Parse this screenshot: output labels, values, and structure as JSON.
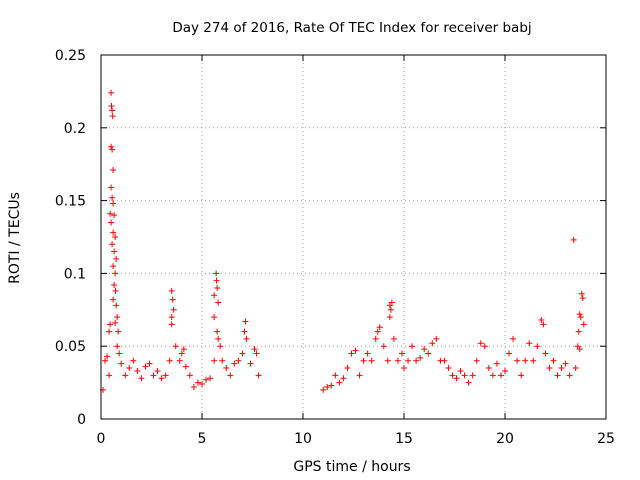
{
  "chart_data": {
    "type": "scatter",
    "title": "Day 274 of 2016, Rate Of TEC Index for receiver babj",
    "xlabel": "GPS time / hours",
    "ylabel": "ROTI / TECUs",
    "xlim": [
      0,
      25
    ],
    "ylim": [
      0,
      0.25
    ],
    "x_ticks": [
      "0",
      "5",
      "10",
      "15",
      "20",
      "25"
    ],
    "y_ticks": [
      "0",
      "0.05",
      "0.1",
      "0.15",
      "0.2",
      "0.25"
    ],
    "x_tick_values": [
      0,
      5,
      10,
      15,
      20,
      25
    ],
    "y_tick_values": [
      0,
      0.05,
      0.1,
      0.15,
      0.2,
      0.25
    ],
    "grid": true,
    "marker": "+",
    "series": [
      {
        "name": "ROTI",
        "color": "#ff0000",
        "points": [
          [
            0.1,
            0.02
          ],
          [
            0.2,
            0.04
          ],
          [
            0.3,
            0.043
          ],
          [
            0.4,
            0.03
          ],
          [
            0.4,
            0.06
          ],
          [
            0.45,
            0.065
          ],
          [
            0.5,
            0.224
          ],
          [
            0.52,
            0.215
          ],
          [
            0.55,
            0.212
          ],
          [
            0.58,
            0.208
          ],
          [
            0.5,
            0.187
          ],
          [
            0.55,
            0.185
          ],
          [
            0.6,
            0.171
          ],
          [
            0.5,
            0.159
          ],
          [
            0.55,
            0.152
          ],
          [
            0.6,
            0.148
          ],
          [
            0.45,
            0.141
          ],
          [
            0.65,
            0.14
          ],
          [
            0.5,
            0.135
          ],
          [
            0.6,
            0.128
          ],
          [
            0.7,
            0.125
          ],
          [
            0.55,
            0.12
          ],
          [
            0.65,
            0.115
          ],
          [
            0.75,
            0.11
          ],
          [
            0.6,
            0.105
          ],
          [
            0.7,
            0.1
          ],
          [
            0.65,
            0.092
          ],
          [
            0.72,
            0.088
          ],
          [
            0.6,
            0.082
          ],
          [
            0.75,
            0.078
          ],
          [
            0.8,
            0.07
          ],
          [
            0.7,
            0.066
          ],
          [
            0.85,
            0.06
          ],
          [
            0.8,
            0.05
          ],
          [
            0.9,
            0.045
          ],
          [
            1.0,
            0.038
          ],
          [
            1.2,
            0.03
          ],
          [
            1.4,
            0.035
          ],
          [
            1.6,
            0.04
          ],
          [
            1.8,
            0.033
          ],
          [
            2.0,
            0.028
          ],
          [
            2.2,
            0.036
          ],
          [
            2.4,
            0.038
          ],
          [
            2.6,
            0.03
          ],
          [
            2.8,
            0.033
          ],
          [
            3.0,
            0.028
          ],
          [
            3.2,
            0.03
          ],
          [
            3.4,
            0.04
          ],
          [
            3.5,
            0.07
          ],
          [
            3.5,
            0.088
          ],
          [
            3.55,
            0.082
          ],
          [
            3.6,
            0.075
          ],
          [
            3.5,
            0.065
          ],
          [
            3.7,
            0.05
          ],
          [
            3.9,
            0.04
          ],
          [
            4.0,
            0.045
          ],
          [
            4.1,
            0.048
          ],
          [
            4.2,
            0.036
          ],
          [
            4.4,
            0.03
          ],
          [
            4.6,
            0.022
          ],
          [
            4.8,
            0.025
          ],
          [
            5.0,
            0.024
          ],
          [
            5.2,
            0.027
          ],
          [
            5.4,
            0.028
          ],
          [
            5.6,
            0.04
          ],
          [
            5.7,
            0.1
          ],
          [
            5.72,
            0.095
          ],
          [
            5.75,
            0.09
          ],
          [
            5.6,
            0.085
          ],
          [
            5.8,
            0.08
          ],
          [
            5.6,
            0.07
          ],
          [
            5.75,
            0.06
          ],
          [
            5.8,
            0.055
          ],
          [
            5.9,
            0.05
          ],
          [
            6.0,
            0.04
          ],
          [
            6.2,
            0.035
          ],
          [
            6.4,
            0.03
          ],
          [
            6.6,
            0.038
          ],
          [
            6.8,
            0.04
          ],
          [
            7.0,
            0.045
          ],
          [
            7.1,
            0.06
          ],
          [
            7.15,
            0.067
          ],
          [
            7.2,
            0.055
          ],
          [
            7.4,
            0.038
          ],
          [
            7.6,
            0.048
          ],
          [
            7.7,
            0.045
          ],
          [
            7.8,
            0.03
          ],
          [
            11.0,
            0.02
          ],
          [
            11.2,
            0.022
          ],
          [
            11.4,
            0.023
          ],
          [
            11.6,
            0.03
          ],
          [
            11.8,
            0.025
          ],
          [
            12.0,
            0.028
          ],
          [
            12.2,
            0.035
          ],
          [
            12.4,
            0.045
          ],
          [
            12.6,
            0.047
          ],
          [
            12.8,
            0.03
          ],
          [
            13.0,
            0.04
          ],
          [
            13.2,
            0.045
          ],
          [
            13.4,
            0.04
          ],
          [
            13.6,
            0.055
          ],
          [
            13.7,
            0.06
          ],
          [
            13.8,
            0.063
          ],
          [
            14.0,
            0.05
          ],
          [
            14.2,
            0.04
          ],
          [
            14.3,
            0.078
          ],
          [
            14.35,
            0.075
          ],
          [
            14.4,
            0.08
          ],
          [
            14.3,
            0.07
          ],
          [
            14.5,
            0.055
          ],
          [
            14.7,
            0.04
          ],
          [
            14.9,
            0.045
          ],
          [
            15.0,
            0.035
          ],
          [
            15.2,
            0.04
          ],
          [
            15.4,
            0.05
          ],
          [
            15.6,
            0.04
          ],
          [
            15.8,
            0.042
          ],
          [
            16.0,
            0.048
          ],
          [
            16.2,
            0.045
          ],
          [
            16.4,
            0.052
          ],
          [
            16.6,
            0.055
          ],
          [
            16.8,
            0.04
          ],
          [
            17.0,
            0.04
          ],
          [
            17.2,
            0.035
          ],
          [
            17.4,
            0.03
          ],
          [
            17.6,
            0.028
          ],
          [
            17.8,
            0.033
          ],
          [
            18.0,
            0.03
          ],
          [
            18.2,
            0.025
          ],
          [
            18.4,
            0.03
          ],
          [
            18.6,
            0.04
          ],
          [
            18.8,
            0.052
          ],
          [
            19.0,
            0.05
          ],
          [
            19.2,
            0.035
          ],
          [
            19.4,
            0.03
          ],
          [
            19.6,
            0.038
          ],
          [
            19.8,
            0.03
          ],
          [
            20.0,
            0.033
          ],
          [
            20.2,
            0.045
          ],
          [
            20.4,
            0.055
          ],
          [
            20.6,
            0.04
          ],
          [
            20.8,
            0.03
          ],
          [
            21.0,
            0.04
          ],
          [
            21.2,
            0.052
          ],
          [
            21.4,
            0.04
          ],
          [
            21.6,
            0.05
          ],
          [
            21.8,
            0.068
          ],
          [
            21.9,
            0.065
          ],
          [
            22.0,
            0.045
          ],
          [
            22.2,
            0.035
          ],
          [
            22.4,
            0.04
          ],
          [
            22.6,
            0.03
          ],
          [
            22.8,
            0.035
          ],
          [
            23.0,
            0.038
          ],
          [
            23.2,
            0.03
          ],
          [
            23.4,
            0.123
          ],
          [
            23.5,
            0.035
          ],
          [
            23.6,
            0.05
          ],
          [
            23.65,
            0.06
          ],
          [
            23.7,
            0.072
          ],
          [
            23.75,
            0.07
          ],
          [
            23.8,
            0.086
          ],
          [
            23.85,
            0.083
          ],
          [
            23.9,
            0.065
          ],
          [
            23.7,
            0.048
          ]
        ]
      }
    ]
  }
}
